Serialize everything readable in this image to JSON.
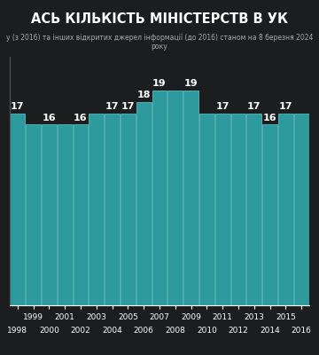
{
  "chart_data": {
    "type": "bar",
    "title": "АСЬ КІЛЬКІСТЬ МІНІСТЕРСТВ В УК",
    "subtitle": "у (з 2016) та інших відкритих джерел інформації (до 2016) станом на 8 березня 2024 року",
    "categories": [
      "1998",
      "1999",
      "2000",
      "2001",
      "2002",
      "2003",
      "2004",
      "2005",
      "2006",
      "2007",
      "2008",
      "2009",
      "2010",
      "2011",
      "2012",
      "2013",
      "2014",
      "2015",
      "2016"
    ],
    "values": [
      17,
      16,
      16,
      16,
      16,
      17,
      17,
      17,
      18,
      19,
      19,
      19,
      17,
      17,
      17,
      17,
      16,
      17,
      17
    ],
    "value_labels": [
      "17",
      null,
      "16",
      null,
      "16",
      null,
      "17",
      "17",
      "18",
      "19",
      null,
      "19",
      null,
      "17",
      null,
      "17",
      "16",
      "17",
      null
    ],
    "color": "#2f9a9e",
    "ylim": [
      0,
      22
    ],
    "yticks": [],
    "grid": false,
    "data_labels": true,
    "tick_labels": "x"
  }
}
